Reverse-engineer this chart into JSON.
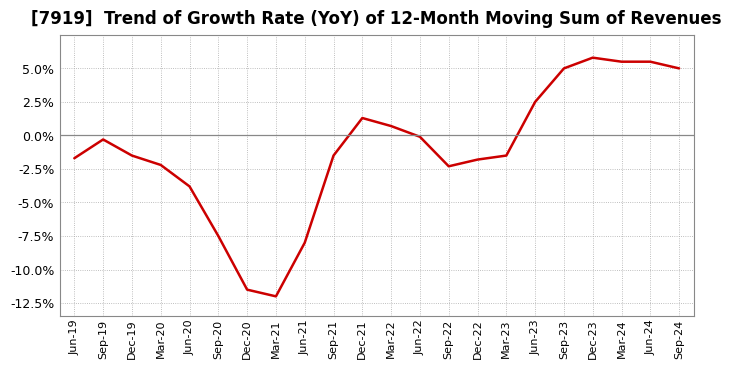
{
  "title": "[7919]  Trend of Growth Rate (YoY) of 12-Month Moving Sum of Revenues",
  "line_color": "#cc0000",
  "background_color": "#ffffff",
  "grid_color": "#aaaaaa",
  "x_labels": [
    "Jun-19",
    "Sep-19",
    "Dec-19",
    "Mar-20",
    "Jun-20",
    "Sep-20",
    "Dec-20",
    "Mar-21",
    "Jun-21",
    "Sep-21",
    "Dec-21",
    "Mar-22",
    "Jun-22",
    "Sep-22",
    "Dec-22",
    "Mar-23",
    "Jun-23",
    "Sep-23",
    "Dec-23",
    "Mar-24",
    "Jun-24",
    "Sep-24"
  ],
  "y_values": [
    -1.7,
    -0.3,
    -1.5,
    -2.2,
    -3.8,
    -7.5,
    -11.5,
    -12.0,
    -8.0,
    -1.5,
    1.3,
    0.7,
    -0.1,
    -2.3,
    -1.8,
    -1.5,
    2.5,
    5.0,
    5.8,
    5.5,
    5.5,
    5.0
  ],
  "ylim": [
    -13.5,
    7.5
  ],
  "yticks": [
    -12.5,
    -10.0,
    -7.5,
    -5.0,
    -2.5,
    0.0,
    2.5,
    5.0
  ],
  "zero_line_color": "#888888",
  "title_fontsize": 12,
  "tick_fontsize": 9,
  "xtick_fontsize": 8
}
